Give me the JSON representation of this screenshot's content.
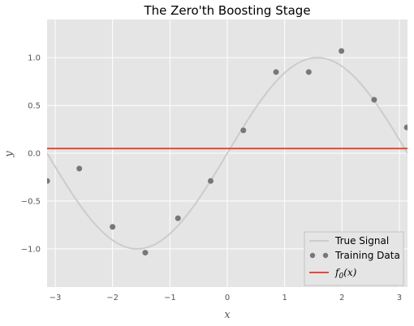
{
  "chart_data": {
    "type": "line",
    "title": "The Zero'th Boosting Stage",
    "xlabel": "x",
    "ylabel": "y",
    "xlim": [
      -3.14159,
      3.14159
    ],
    "ylim": [
      -1.4,
      1.4
    ],
    "xticks": [
      -3,
      -2,
      -1,
      0,
      1,
      2,
      3
    ],
    "yticks": [
      -1.0,
      -0.5,
      0.0,
      0.5,
      1.0
    ],
    "xtick_labels": [
      "−3",
      "−2",
      "−1",
      "0",
      "1",
      "2",
      "3"
    ],
    "ytick_labels": [
      "−1.0",
      "−0.5",
      "0.0",
      "0.5",
      "1.0"
    ],
    "grid": true,
    "legend_position": "bottom-right",
    "colors": {
      "background": "#e5e5e5",
      "grid": "#ffffff",
      "true_signal": "#cccccc",
      "training_data": "#777777",
      "f0": "#e24a33"
    },
    "series": [
      {
        "name": "True Signal",
        "kind": "line",
        "function": "sin(x)"
      },
      {
        "name": "Training Data",
        "kind": "scatter",
        "x": [
          -3.14,
          -2.58,
          -2.0,
          -1.43,
          -0.86,
          -0.29,
          0.28,
          0.85,
          1.42,
          1.99,
          2.56,
          3.13
        ],
        "y": [
          -0.29,
          -0.16,
          -0.77,
          -1.04,
          -0.68,
          -0.29,
          0.24,
          0.85,
          0.85,
          1.07,
          0.56,
          0.27
        ]
      },
      {
        "name": "f_0(x)",
        "kind": "hline",
        "y": 0.05
      }
    ],
    "legend": {
      "entries": [
        "True Signal",
        "Training Data",
        "f0(x)"
      ],
      "f0_main": "f",
      "f0_sub": "0",
      "f0_args": "(x)"
    }
  }
}
